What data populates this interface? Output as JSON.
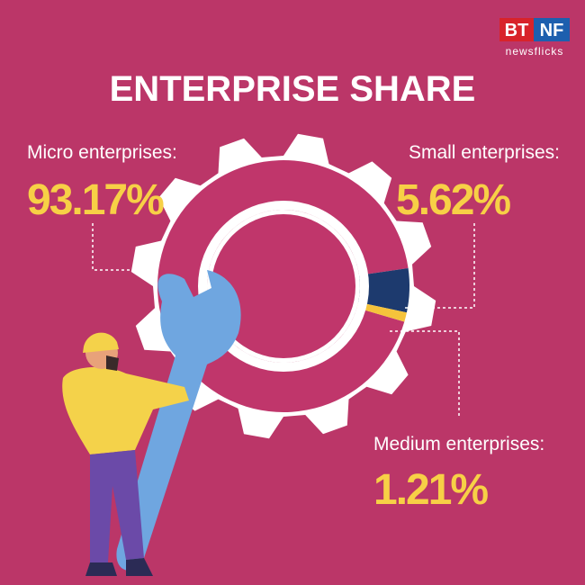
{
  "logo": {
    "left": "BT",
    "right": "NF",
    "tagline": "newsflicks"
  },
  "chart_data": {
    "type": "donut",
    "title": "ENTERPRISE SHARE",
    "categories": [
      "Micro enterprises:",
      "Small enterprises:",
      "Medium enterprises:"
    ],
    "values": [
      93.17,
      5.62,
      1.21
    ],
    "value_labels": [
      "93.17%",
      "5.62%",
      "1.21%"
    ],
    "colors": [
      "#c0366b",
      "#1d3a6e",
      "#f5c33b"
    ]
  }
}
